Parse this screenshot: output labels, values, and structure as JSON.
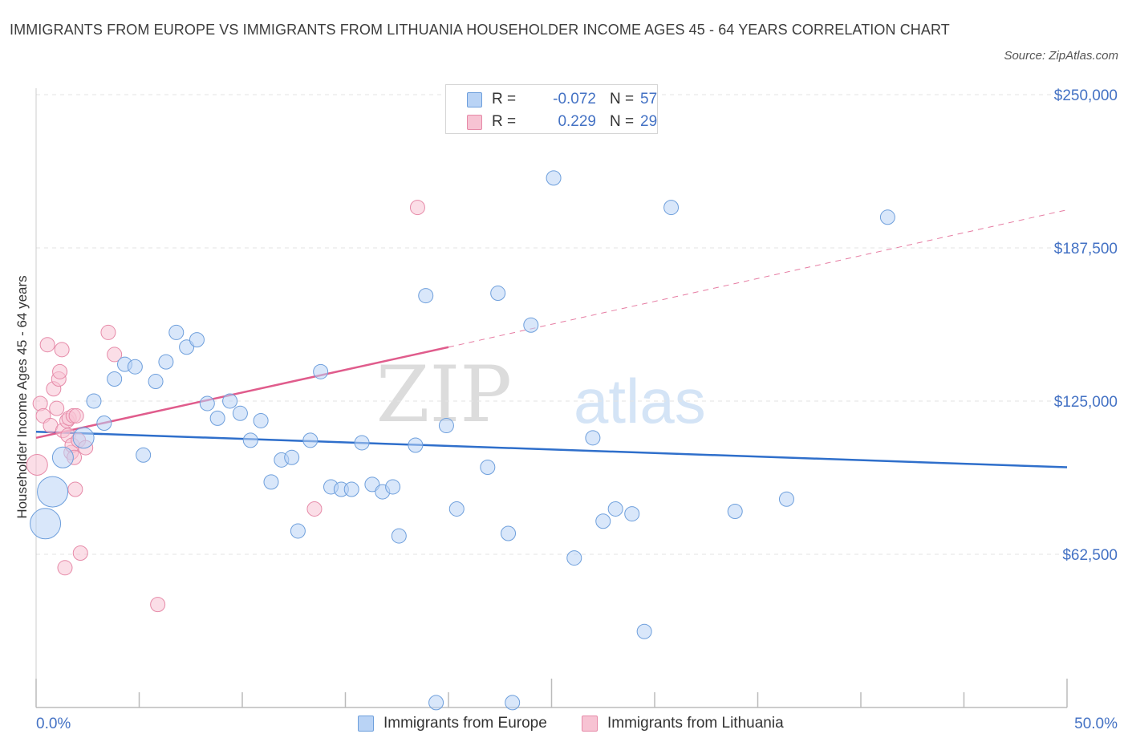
{
  "title": "IMMIGRANTS FROM EUROPE VS IMMIGRANTS FROM LITHUANIA HOUSEHOLDER INCOME AGES 45 - 64 YEARS CORRELATION CHART",
  "source": "Source: ZipAtlas.com",
  "watermark": {
    "zip": "ZIP",
    "atlas": "atlas"
  },
  "colors": {
    "europe_fill": "#b9d3f5",
    "europe_stroke": "#6e9fdc",
    "europe_line": "#2f6fcb",
    "lithuania_fill": "#f7c3d3",
    "lithuania_stroke": "#e68aa8",
    "lithuania_line": "#e05c8c",
    "value_text": "#4472c4",
    "grid": "#e3e3e3"
  },
  "legend_top": {
    "rows": [
      {
        "r_label": "R =",
        "r_value": "-0.072",
        "n_label": "N =",
        "n_value": "57"
      },
      {
        "r_label": "R =",
        "r_value": "0.229",
        "n_label": "N =",
        "n_value": "29"
      }
    ]
  },
  "legend_bottom": [
    "Immigrants from Europe",
    "Immigrants from Lithuania"
  ],
  "chart_data": {
    "type": "scatter",
    "title": "IMMIGRANTS FROM EUROPE VS IMMIGRANTS FROM LITHUANIA HOUSEHOLDER INCOME AGES 45 - 64 YEARS CORRELATION CHART",
    "xlabel": "",
    "ylabel": "Householder Income Ages 45 - 64 years",
    "xlim": [
      0,
      50
    ],
    "ylim": [
      0,
      250000
    ],
    "x_tick_labels": [
      "0.0%",
      "50.0%"
    ],
    "y_ticks": [
      62500,
      125000,
      187500,
      250000
    ],
    "y_tick_labels": [
      "$62,500",
      "$125,000",
      "$187,500",
      "$250,000"
    ],
    "grid": true,
    "series": [
      {
        "name": "Immigrants from Europe",
        "r": -0.072,
        "n": 57,
        "trend": {
          "x": [
            0,
            50
          ],
          "y": [
            112500,
            98000
          ]
        },
        "points": [
          {
            "x": 0.45,
            "y": 75000,
            "s": 3
          },
          {
            "x": 0.8,
            "y": 88000,
            "s": 3
          },
          {
            "x": 1.3,
            "y": 102000,
            "s": 2
          },
          {
            "x": 2.3,
            "y": 110000,
            "s": 2
          },
          {
            "x": 2.8,
            "y": 125000,
            "s": 1
          },
          {
            "x": 3.3,
            "y": 116000,
            "s": 1
          },
          {
            "x": 3.8,
            "y": 134000,
            "s": 1
          },
          {
            "x": 4.3,
            "y": 140000,
            "s": 1
          },
          {
            "x": 4.8,
            "y": 139000,
            "s": 1
          },
          {
            "x": 5.2,
            "y": 103000,
            "s": 1
          },
          {
            "x": 5.8,
            "y": 133000,
            "s": 1
          },
          {
            "x": 6.3,
            "y": 141000,
            "s": 1
          },
          {
            "x": 6.8,
            "y": 153000,
            "s": 1
          },
          {
            "x": 7.3,
            "y": 147000,
            "s": 1
          },
          {
            "x": 7.8,
            "y": 150000,
            "s": 1
          },
          {
            "x": 8.3,
            "y": 124000,
            "s": 1
          },
          {
            "x": 8.8,
            "y": 118000,
            "s": 1
          },
          {
            "x": 9.4,
            "y": 125000,
            "s": 1
          },
          {
            "x": 9.9,
            "y": 120000,
            "s": 1
          },
          {
            "x": 10.4,
            "y": 109000,
            "s": 1
          },
          {
            "x": 10.9,
            "y": 117000,
            "s": 1
          },
          {
            "x": 11.4,
            "y": 92000,
            "s": 1
          },
          {
            "x": 11.9,
            "y": 101000,
            "s": 1
          },
          {
            "x": 12.4,
            "y": 102000,
            "s": 1
          },
          {
            "x": 12.7,
            "y": 72000,
            "s": 1
          },
          {
            "x": 13.3,
            "y": 109000,
            "s": 1
          },
          {
            "x": 13.8,
            "y": 137000,
            "s": 1
          },
          {
            "x": 14.3,
            "y": 90000,
            "s": 1
          },
          {
            "x": 14.8,
            "y": 89000,
            "s": 1
          },
          {
            "x": 15.3,
            "y": 89000,
            "s": 1
          },
          {
            "x": 15.8,
            "y": 108000,
            "s": 1
          },
          {
            "x": 16.3,
            "y": 91000,
            "s": 1
          },
          {
            "x": 16.8,
            "y": 88000,
            "s": 1
          },
          {
            "x": 17.3,
            "y": 90000,
            "s": 1
          },
          {
            "x": 17.6,
            "y": 70000,
            "s": 1
          },
          {
            "x": 18.4,
            "y": 107000,
            "s": 1
          },
          {
            "x": 18.9,
            "y": 168000,
            "s": 1
          },
          {
            "x": 19.4,
            "y": 2000,
            "s": 1
          },
          {
            "x": 19.9,
            "y": 115000,
            "s": 1
          },
          {
            "x": 20.4,
            "y": 81000,
            "s": 1
          },
          {
            "x": 21.9,
            "y": 98000,
            "s": 1
          },
          {
            "x": 22.4,
            "y": 169000,
            "s": 1
          },
          {
            "x": 22.9,
            "y": 71000,
            "s": 1
          },
          {
            "x": 23.1,
            "y": 2000,
            "s": 1
          },
          {
            "x": 24.0,
            "y": 156000,
            "s": 1
          },
          {
            "x": 25.1,
            "y": 216000,
            "s": 1
          },
          {
            "x": 26.1,
            "y": 61000,
            "s": 1
          },
          {
            "x": 27.0,
            "y": 110000,
            "s": 1
          },
          {
            "x": 27.5,
            "y": 76000,
            "s": 1
          },
          {
            "x": 28.1,
            "y": 81000,
            "s": 1
          },
          {
            "x": 28.9,
            "y": 79000,
            "s": 1
          },
          {
            "x": 29.5,
            "y": 31000,
            "s": 1
          },
          {
            "x": 30.8,
            "y": 204000,
            "s": 1
          },
          {
            "x": 33.9,
            "y": 80000,
            "s": 1
          },
          {
            "x": 36.4,
            "y": 85000,
            "s": 1
          },
          {
            "x": 41.3,
            "y": 200000,
            "s": 1
          }
        ]
      },
      {
        "name": "Immigrants from Lithuania",
        "r": 0.229,
        "n": 29,
        "trend": {
          "x": [
            0,
            20
          ],
          "y": [
            110000,
            147000
          ]
        },
        "trend_extension": {
          "x": [
            20,
            50
          ],
          "y": [
            147000,
            203000
          ]
        },
        "points": [
          {
            "x": 0.05,
            "y": 99000,
            "s": 2
          },
          {
            "x": 0.2,
            "y": 124000,
            "s": 1
          },
          {
            "x": 0.35,
            "y": 119000,
            "s": 1
          },
          {
            "x": 0.55,
            "y": 148000,
            "s": 1
          },
          {
            "x": 0.7,
            "y": 115000,
            "s": 1
          },
          {
            "x": 0.85,
            "y": 130000,
            "s": 1
          },
          {
            "x": 1.0,
            "y": 122000,
            "s": 1
          },
          {
            "x": 1.1,
            "y": 134000,
            "s": 1
          },
          {
            "x": 1.15,
            "y": 137000,
            "s": 1
          },
          {
            "x": 1.25,
            "y": 146000,
            "s": 1
          },
          {
            "x": 1.3,
            "y": 113000,
            "s": 1
          },
          {
            "x": 1.4,
            "y": 57000,
            "s": 1
          },
          {
            "x": 1.5,
            "y": 117000,
            "s": 1
          },
          {
            "x": 1.55,
            "y": 111000,
            "s": 1
          },
          {
            "x": 1.6,
            "y": 118000,
            "s": 1
          },
          {
            "x": 1.7,
            "y": 104000,
            "s": 1
          },
          {
            "x": 1.75,
            "y": 107000,
            "s": 1
          },
          {
            "x": 1.8,
            "y": 119000,
            "s": 1
          },
          {
            "x": 1.85,
            "y": 102000,
            "s": 1
          },
          {
            "x": 1.9,
            "y": 89000,
            "s": 1
          },
          {
            "x": 1.95,
            "y": 119000,
            "s": 1
          },
          {
            "x": 2.05,
            "y": 109000,
            "s": 1
          },
          {
            "x": 2.15,
            "y": 63000,
            "s": 1
          },
          {
            "x": 2.4,
            "y": 106000,
            "s": 1
          },
          {
            "x": 3.5,
            "y": 153000,
            "s": 1
          },
          {
            "x": 3.8,
            "y": 144000,
            "s": 1
          },
          {
            "x": 5.9,
            "y": 42000,
            "s": 1
          },
          {
            "x": 13.5,
            "y": 81000,
            "s": 1
          },
          {
            "x": 18.5,
            "y": 204000,
            "s": 1
          }
        ]
      }
    ]
  }
}
